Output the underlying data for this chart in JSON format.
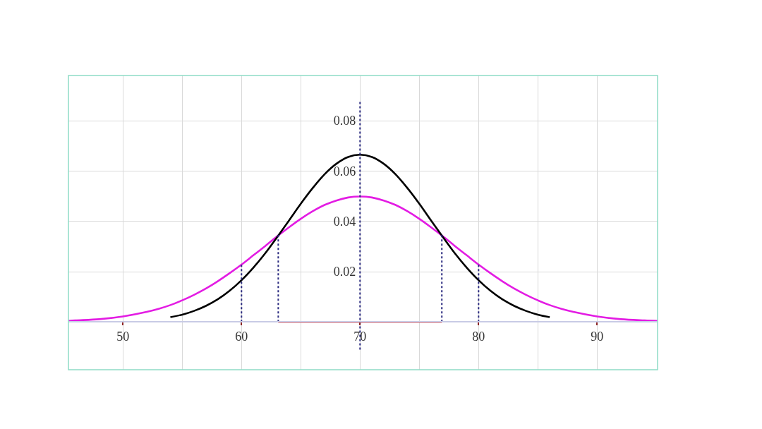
{
  "chart_data": {
    "type": "line",
    "xlim": [
      45.4,
      95.1
    ],
    "ylim": [
      -0.019,
      0.098
    ],
    "xticks": [
      50,
      {
        "value": 55,
        "label": null
      },
      60,
      {
        "value": 65,
        "label": null
      },
      70,
      {
        "value": 75,
        "label": null
      },
      80,
      {
        "value": 85,
        "label": null
      },
      90
    ],
    "yticks": [
      0.02,
      0.04,
      0.06,
      0.08
    ],
    "grid": true,
    "series": [
      {
        "color": "#e31ce3",
        "line_style": "solid",
        "x": [
          45.4,
          46,
          48,
          50,
          52,
          53,
          54,
          55,
          56,
          57,
          58,
          59,
          60,
          61,
          62,
          63,
          64,
          65,
          66,
          67,
          68,
          69,
          70,
          71,
          72,
          73,
          74,
          75,
          76,
          77,
          78,
          79,
          80,
          81,
          82,
          83,
          84,
          85,
          86,
          87,
          88,
          90,
          92,
          94,
          95.1
        ],
        "values": [
          0.0004,
          0.0006,
          0.0011,
          0.0022,
          0.004,
          0.0052,
          0.0067,
          0.0086,
          0.0108,
          0.0133,
          0.0162,
          0.0194,
          0.0228,
          0.0265,
          0.0302,
          0.034,
          0.0376,
          0.041,
          0.044,
          0.0465,
          0.0483,
          0.0495,
          0.0499,
          0.0495,
          0.0483,
          0.0465,
          0.044,
          0.041,
          0.0376,
          0.034,
          0.0302,
          0.0265,
          0.0228,
          0.0194,
          0.0162,
          0.0133,
          0.0108,
          0.0086,
          0.0067,
          0.0052,
          0.004,
          0.0022,
          0.0011,
          0.0006,
          0.0004
        ]
      },
      {
        "color": "#000000",
        "line_style": "solid",
        "x": [
          54,
          55,
          56,
          57,
          58,
          59,
          60,
          61,
          62,
          63,
          64,
          65,
          66,
          67,
          68,
          69,
          70,
          71,
          72,
          73,
          74,
          75,
          76,
          77,
          78,
          79,
          80,
          81,
          82,
          83,
          84,
          85,
          86
        ],
        "values": [
          0.0019,
          0.0029,
          0.0044,
          0.0064,
          0.009,
          0.0124,
          0.0166,
          0.0216,
          0.0273,
          0.0337,
          0.0403,
          0.047,
          0.0532,
          0.0587,
          0.0629,
          0.0656,
          0.0665,
          0.0656,
          0.0629,
          0.0587,
          0.0532,
          0.047,
          0.0403,
          0.0337,
          0.0273,
          0.0216,
          0.0166,
          0.0124,
          0.009,
          0.0064,
          0.0044,
          0.0029,
          0.0019
        ]
      },
      {
        "color": "#d41414",
        "line_style": "solid",
        "x": [
          63.1,
          76.9
        ],
        "values": [
          0,
          0
        ]
      },
      {
        "color": "#2b2b80",
        "line_style": "dotted",
        "x": [
          70,
          70
        ],
        "values": [
          -0.011,
          0.088
        ]
      },
      {
        "color": "#2b2b80",
        "line_style": "dotted",
        "x": [
          60,
          60
        ],
        "values": [
          0,
          0.0228
        ]
      },
      {
        "color": "#2b2b80",
        "line_style": "dotted",
        "x": [
          80,
          80
        ],
        "values": [
          0,
          0.0228
        ]
      },
      {
        "color": "#2b2b80",
        "line_style": "dotted",
        "x": [
          63.1,
          63.1
        ],
        "values": [
          0,
          0.0345
        ]
      },
      {
        "color": "#2b2b80",
        "line_style": "dotted",
        "x": [
          76.9,
          76.9
        ],
        "values": [
          0,
          0.0345
        ]
      }
    ]
  }
}
